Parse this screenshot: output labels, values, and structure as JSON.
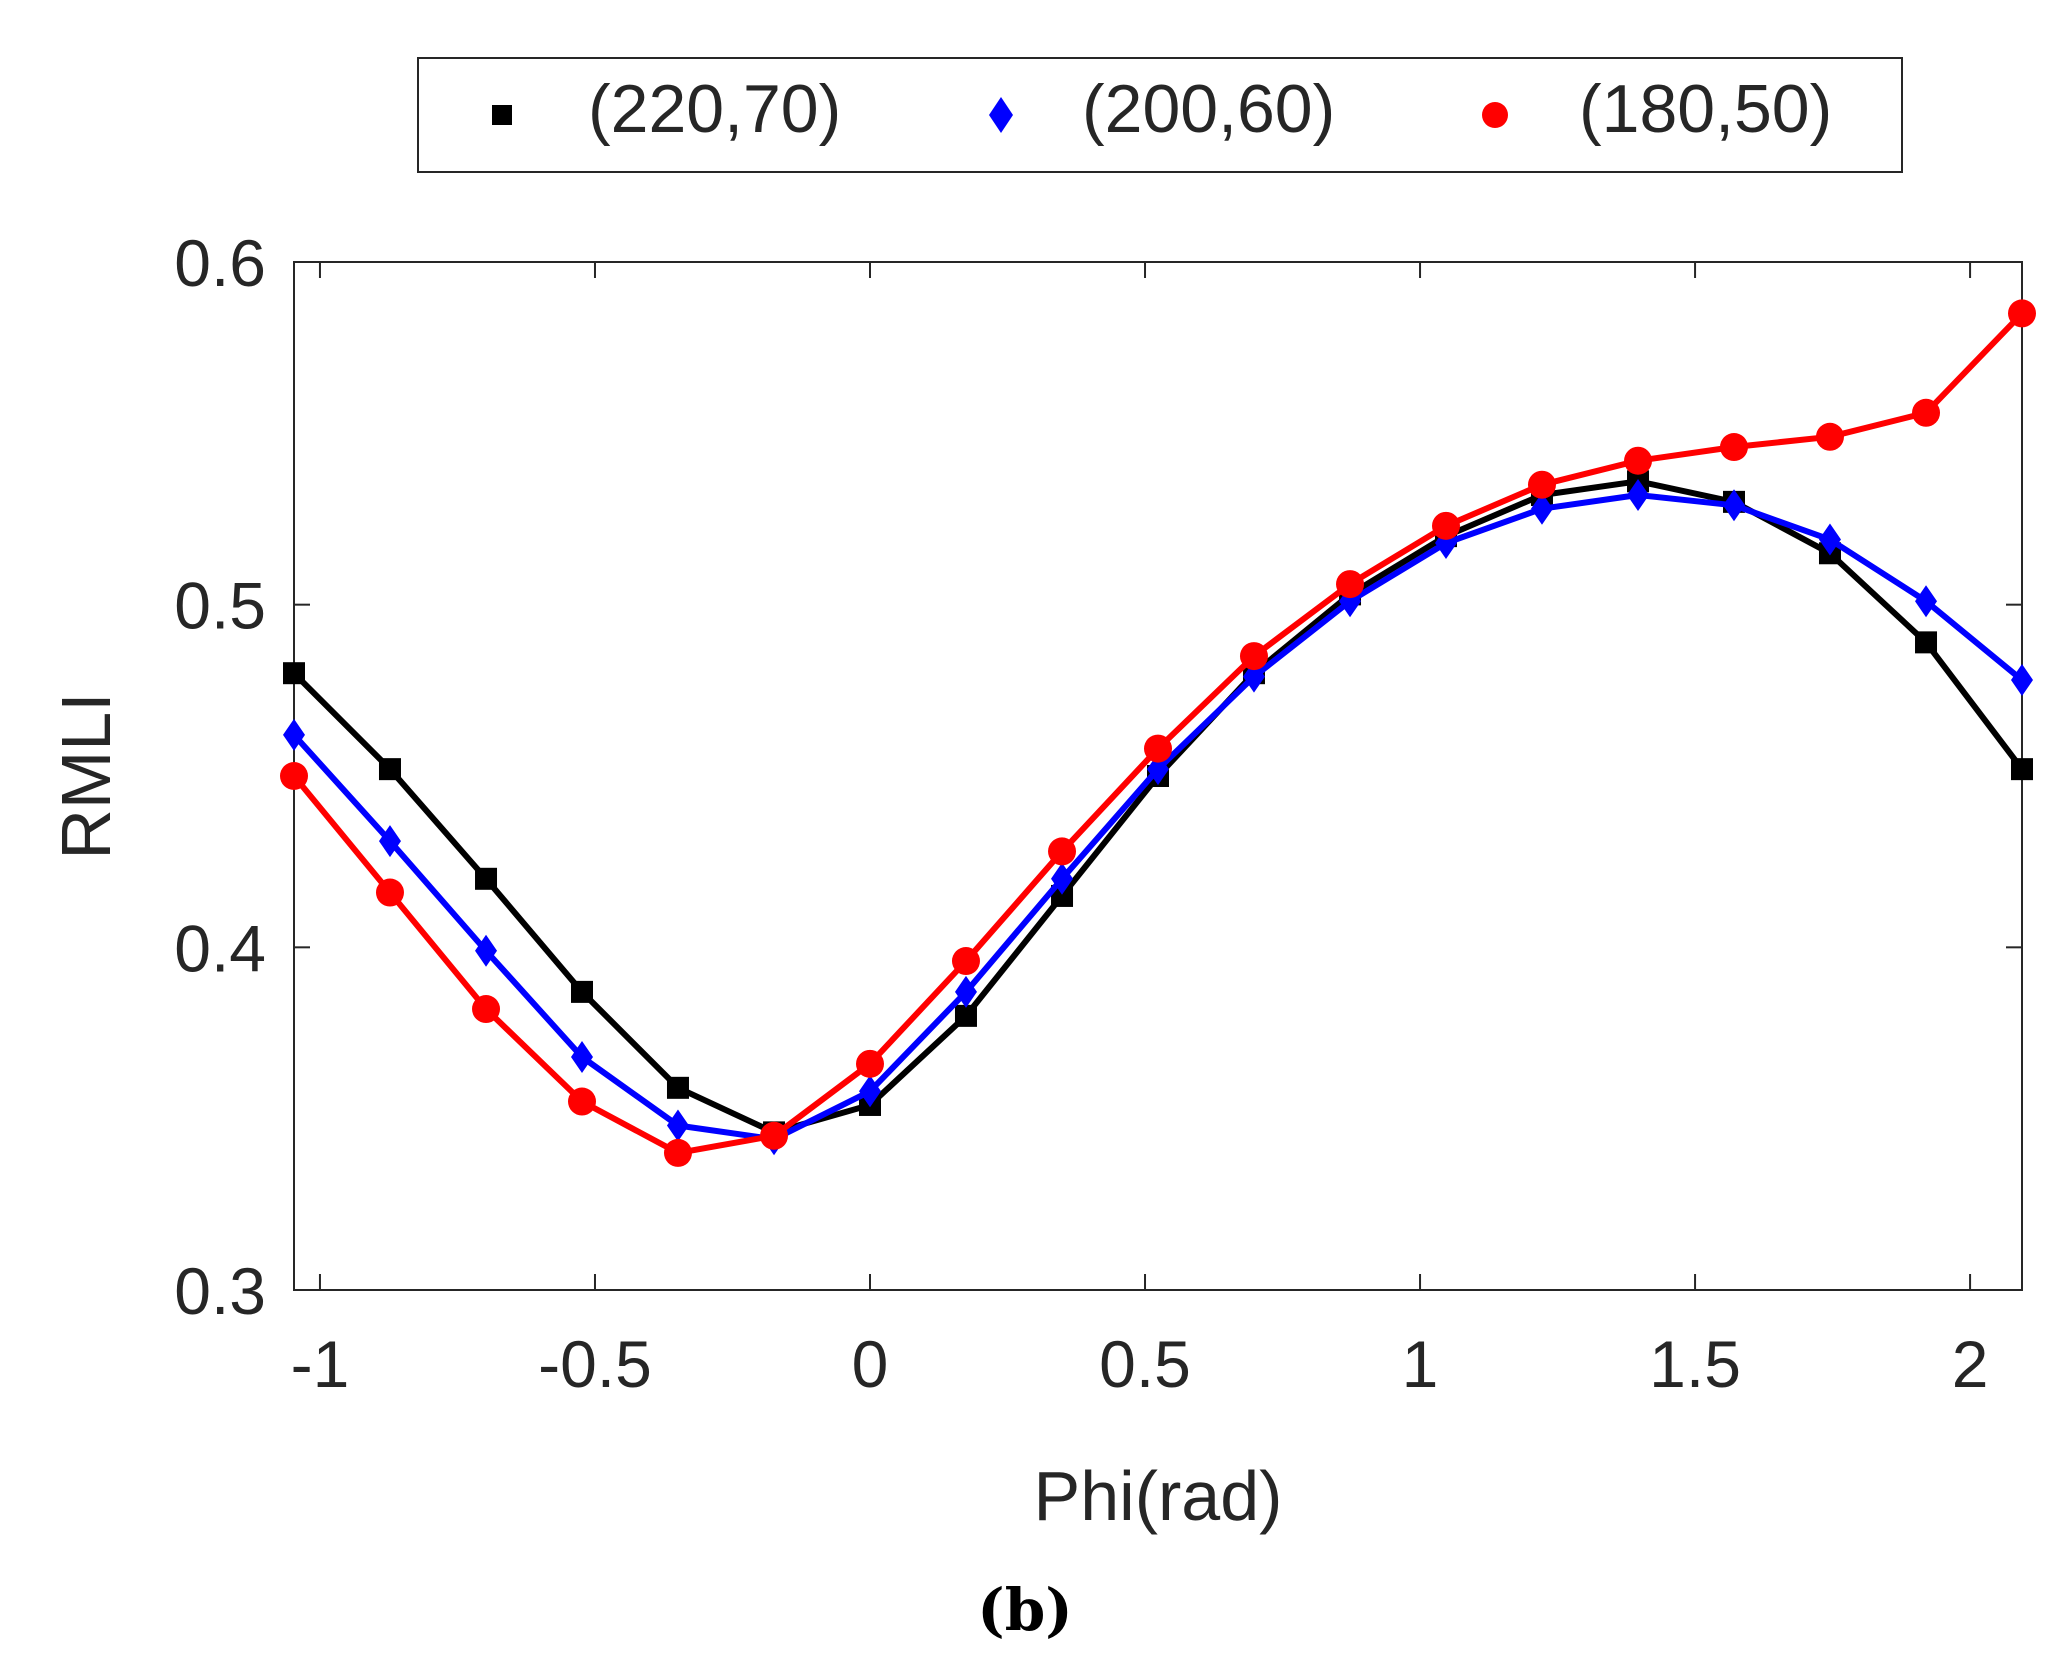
{
  "chart_data": {
    "type": "line",
    "title": "",
    "xlabel": "Phi(rad)",
    "ylabel": "RMLI",
    "caption": "(b)",
    "xlim": [
      -1.0472,
      2.0944
    ],
    "ylim": [
      0.3,
      0.6
    ],
    "xticks": [
      -1,
      -0.5,
      0,
      0.5,
      1,
      1.5,
      2
    ],
    "xtick_labels": [
      "-1",
      "-0.5",
      "0",
      "0.5",
      "1",
      "1.5",
      "2"
    ],
    "yticks": [
      0.3,
      0.4,
      0.5,
      0.6
    ],
    "ytick_labels": [
      "0.3",
      "0.4",
      "0.5",
      "0.6"
    ],
    "grid": false,
    "legend_position": "top, outside, horizontal",
    "x": [
      -1.0472,
      -0.8727,
      -0.6981,
      -0.5236,
      -0.3491,
      -0.1745,
      0,
      0.1745,
      0.3491,
      0.5236,
      0.6981,
      0.8727,
      1.0472,
      1.2217,
      1.3963,
      1.5708,
      1.7453,
      1.9199,
      2.0944
    ],
    "series": [
      {
        "name": "(220,70)",
        "color": "#000000",
        "marker": "square",
        "values": [
          0.48,
          0.452,
          0.42,
          0.387,
          0.359,
          0.346,
          0.354,
          0.38,
          0.415,
          0.45,
          0.48,
          0.503,
          0.52,
          0.532,
          0.536,
          0.53,
          0.515,
          0.489,
          0.452
        ]
      },
      {
        "name": "(200,60)",
        "color": "#0000ff",
        "marker": "diamond",
        "values": [
          0.462,
          0.431,
          0.399,
          0.368,
          0.348,
          0.344,
          0.358,
          0.387,
          0.42,
          0.452,
          0.479,
          0.501,
          0.518,
          0.528,
          0.532,
          0.529,
          0.519,
          0.501,
          0.478
        ]
      },
      {
        "name": "(180,50)",
        "color": "#ff0000",
        "marker": "circle",
        "values": [
          0.45,
          0.416,
          0.382,
          0.355,
          0.34,
          0.345,
          0.366,
          0.396,
          0.428,
          0.458,
          0.485,
          0.506,
          0.523,
          0.535,
          0.542,
          0.546,
          0.549,
          0.556,
          0.585
        ]
      }
    ]
  }
}
